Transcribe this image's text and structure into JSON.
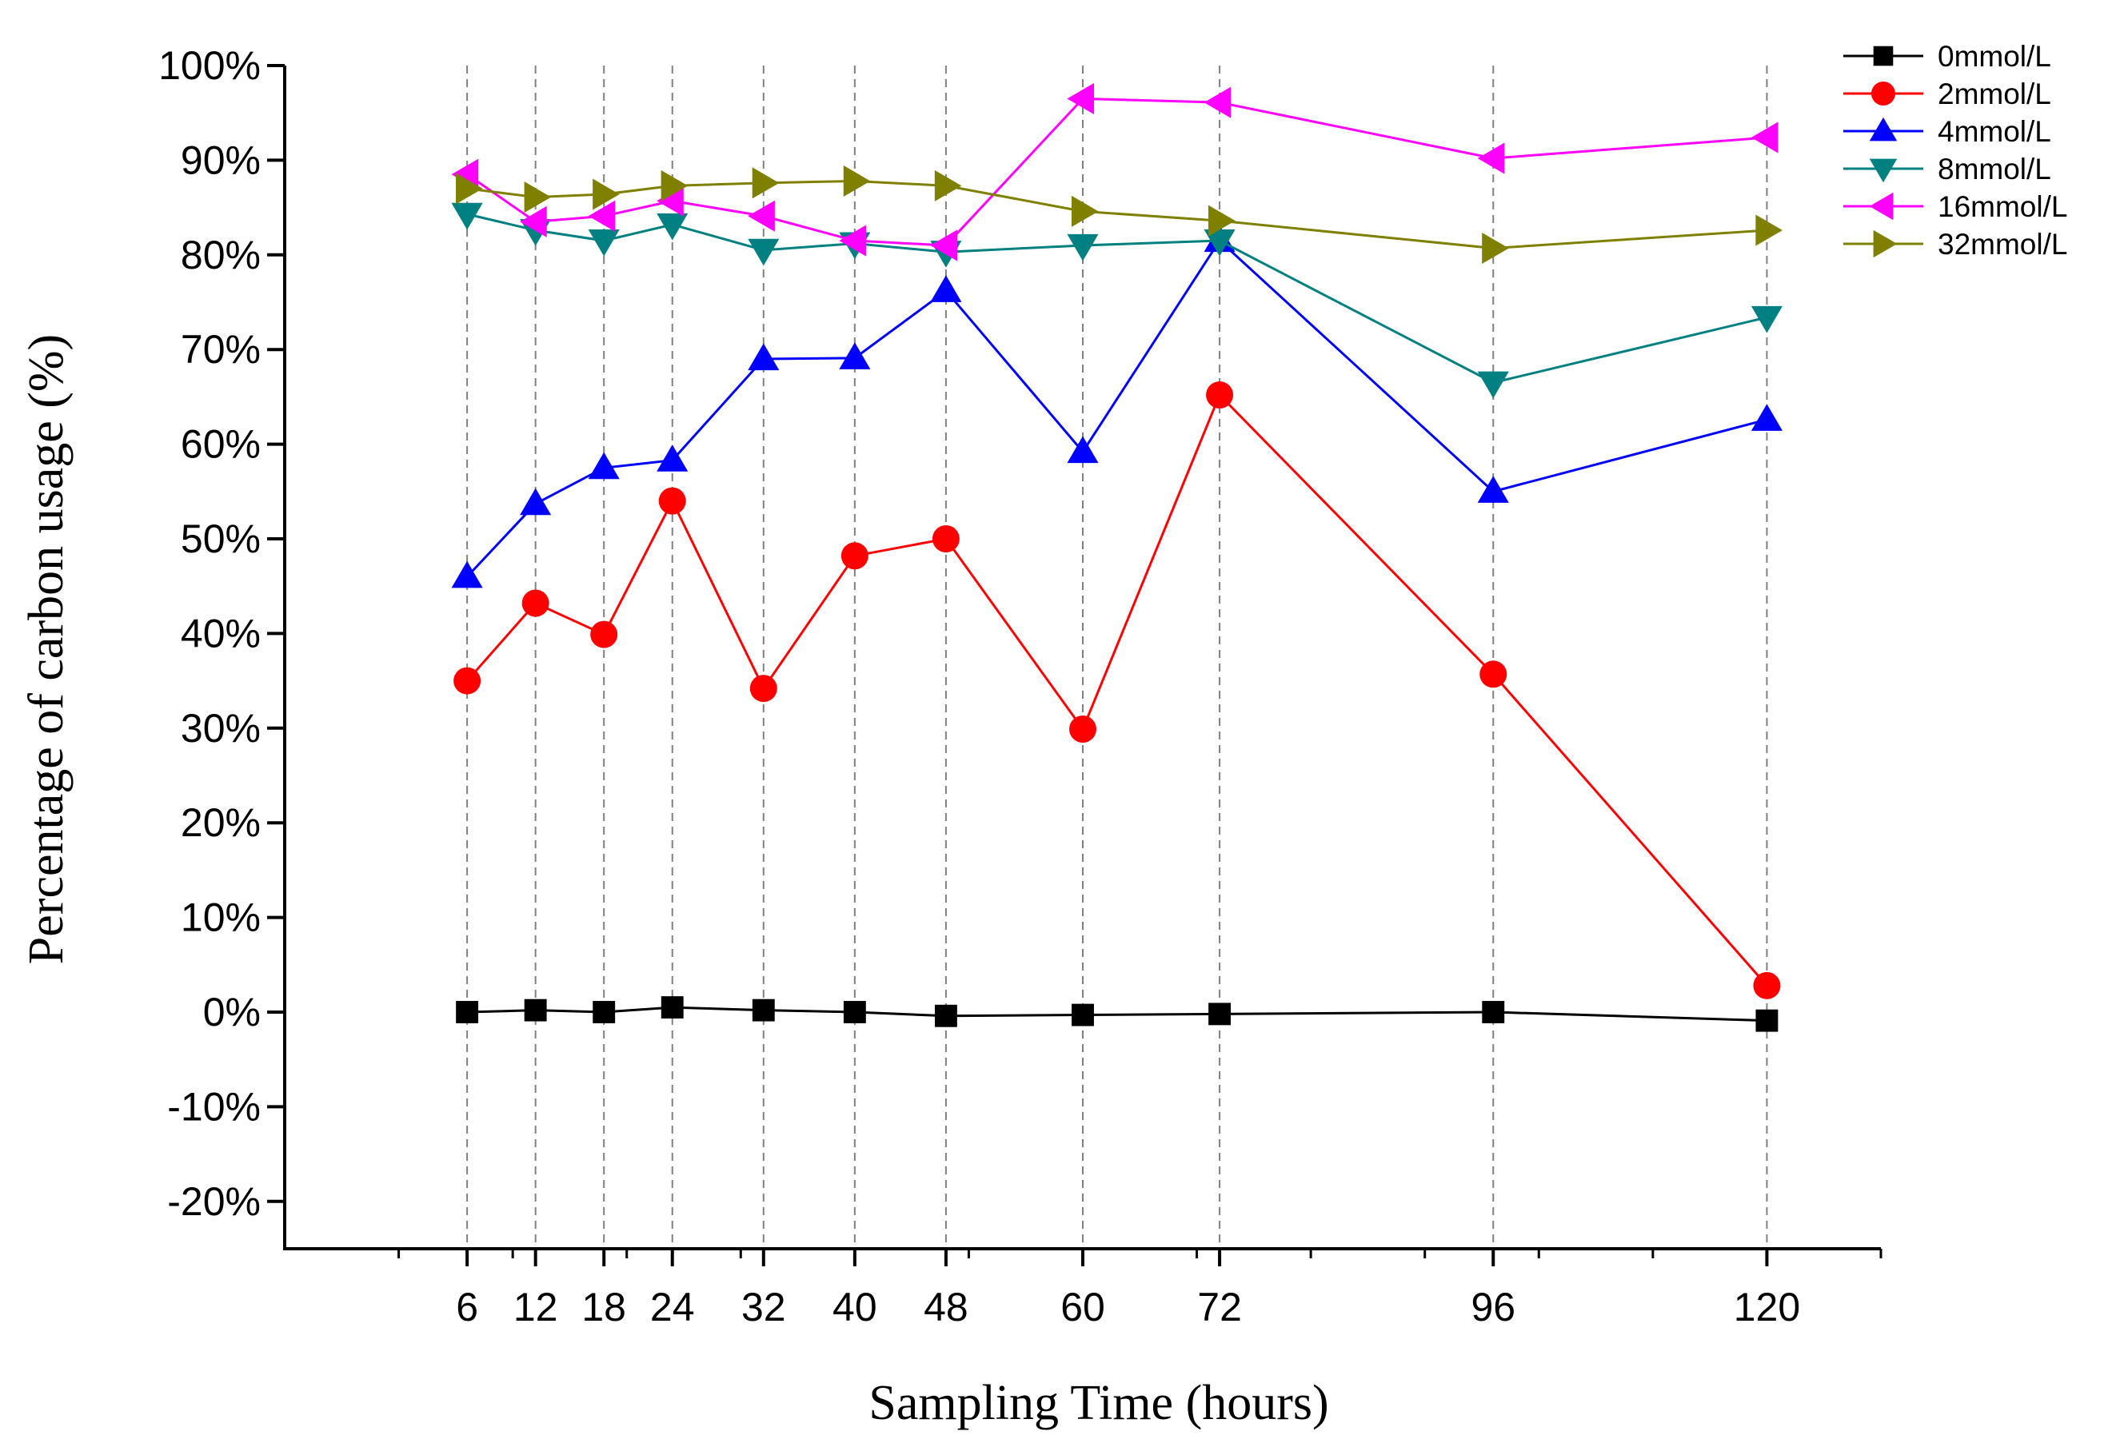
{
  "chart_data": {
    "type": "line",
    "title": "",
    "xlabel": "Sampling Time (hours)",
    "ylabel": "Percentage of carbon usage (%)",
    "x": [
      6,
      12,
      18,
      24,
      32,
      40,
      48,
      60,
      72,
      96,
      120
    ],
    "x_tick_labels": [
      "6",
      "12",
      "18",
      "24",
      "32",
      "40",
      "48",
      "60",
      "72",
      "96",
      "120"
    ],
    "xlim": [
      -10,
      130
    ],
    "ylim": [
      -25,
      100
    ],
    "y_ticks": [
      -20,
      -10,
      0,
      10,
      20,
      30,
      40,
      50,
      60,
      70,
      80,
      90,
      100
    ],
    "y_tick_labels": [
      "-20%",
      "-10%",
      "0%",
      "10%",
      "20%",
      "30%",
      "40%",
      "50%",
      "60%",
      "70%",
      "80%",
      "90%",
      "100%"
    ],
    "vertical_gridlines": "dashed at each sampling time",
    "legend_position": "top-right",
    "series": [
      {
        "name": "0mmol/L",
        "color": "#000000",
        "marker": "square",
        "values": [
          0.0,
          0.2,
          0.0,
          0.5,
          0.2,
          0.0,
          -0.4,
          -0.3,
          -0.2,
          0.0,
          -0.9
        ]
      },
      {
        "name": "2mmol/L",
        "color": "#ff0000",
        "marker": "circle",
        "values": [
          35.0,
          43.2,
          39.9,
          54.0,
          34.2,
          48.2,
          50.0,
          29.9,
          65.2,
          35.7,
          2.8
        ]
      },
      {
        "name": "4mmol/L",
        "color": "#0000ff",
        "marker": "triangle-up",
        "values": [
          46.0,
          53.7,
          57.5,
          58.3,
          69.0,
          69.1,
          76.2,
          59.2,
          81.5,
          55.0,
          62.6
        ]
      },
      {
        "name": "8mmol/L",
        "color": "#008080",
        "marker": "triangle-down",
        "values": [
          84.3,
          82.6,
          81.5,
          83.2,
          80.5,
          81.2,
          80.3,
          81.0,
          81.5,
          66.5,
          73.4
        ]
      },
      {
        "name": "16mmol/L",
        "color": "#ff00ff",
        "marker": "triangle-left",
        "values": [
          88.5,
          83.5,
          84.1,
          85.7,
          84.1,
          81.5,
          81.0,
          96.5,
          96.1,
          90.2,
          92.4
        ]
      },
      {
        "name": "32mmol/L",
        "color": "#808000",
        "marker": "triangle-right",
        "values": [
          87.0,
          86.1,
          86.4,
          87.3,
          87.6,
          87.8,
          87.3,
          84.6,
          83.6,
          80.7,
          82.6
        ]
      }
    ]
  }
}
